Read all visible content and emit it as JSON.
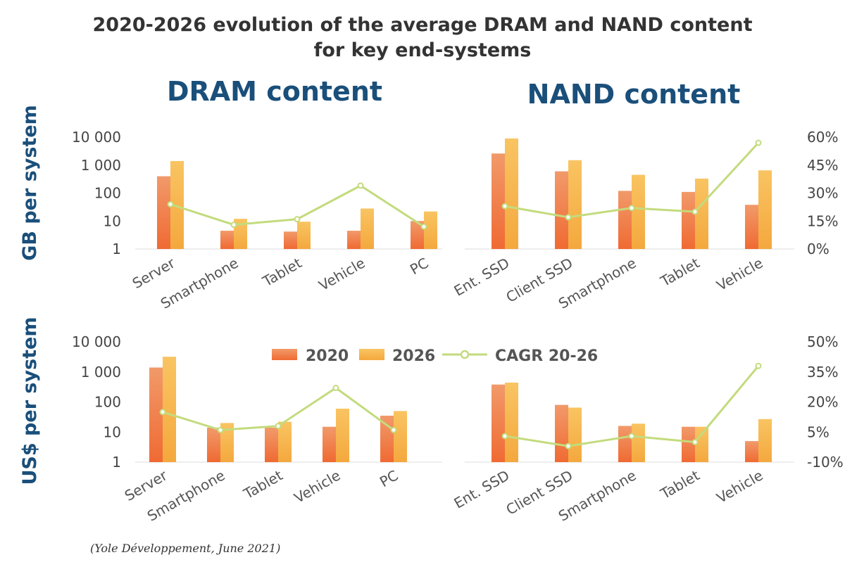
{
  "title_line1": "2020-2026 evolution of the average DRAM and NAND content",
  "title_line2": "for key end-systems",
  "section_titles": {
    "dram": "DRAM content",
    "nand": "NAND content"
  },
  "row_labels": {
    "gb": "GB per system",
    "usd": "US$ per system"
  },
  "legend": {
    "s2020": "2020",
    "s2026": "2026",
    "cagr": "CAGR 20-26"
  },
  "source": "(Yole Développement, June 2021)",
  "colors": {
    "bar2020": "#ee7a45",
    "bar2020_dark": "#f06a33",
    "bar2026": "#f7b84f",
    "bar2026_dark": "#f4a83e",
    "cagr": "#c3db7d",
    "title": "#1a4f7a"
  },
  "chart_data": [
    {
      "type": "bar",
      "name": "DRAM GB per system",
      "yscale": "log",
      "yticks": [
        "1",
        "10",
        "100",
        "1 000",
        "10 000"
      ],
      "categories": [
        "Server",
        "Smartphone",
        "Tablet",
        "Vehicle",
        "PC"
      ],
      "series": [
        {
          "name": "2020",
          "values": [
            400,
            4.5,
            4.2,
            4.5,
            10
          ]
        },
        {
          "name": "2026",
          "values": [
            1400,
            12,
            9.5,
            28,
            22
          ]
        }
      ],
      "cagr": {
        "name": "CAGR 20-26",
        "values": [
          0.24,
          0.13,
          0.16,
          0.34,
          0.12
        ],
        "ylim": [
          0,
          0.6
        ]
      }
    },
    {
      "type": "bar",
      "name": "NAND GB per system",
      "yscale": "log",
      "categories": [
        "Ent. SSD",
        "Client SSD",
        "Smartphone",
        "Tablet",
        "Vehicle"
      ],
      "y2ticks": [
        "0%",
        "15%",
        "30%",
        "45%",
        "60%"
      ],
      "series": [
        {
          "name": "2020",
          "values": [
            2600,
            600,
            120,
            110,
            38
          ]
        },
        {
          "name": "2026",
          "values": [
            9000,
            1500,
            450,
            330,
            650
          ]
        }
      ],
      "cagr": {
        "name": "CAGR 20-26",
        "values": [
          0.23,
          0.17,
          0.22,
          0.2,
          0.57
        ],
        "ylim": [
          0,
          0.6
        ]
      }
    },
    {
      "type": "bar",
      "name": "DRAM US$ per system",
      "yscale": "log",
      "yticks": [
        "1",
        "10",
        "100",
        "1 000",
        "10 000"
      ],
      "categories": [
        "Server",
        "Smartphone",
        "Tablet",
        "Vehicle",
        "PC"
      ],
      "series": [
        {
          "name": "2020",
          "values": [
            1400,
            14,
            14,
            15,
            35
          ]
        },
        {
          "name": "2026",
          "values": [
            3200,
            20,
            22,
            60,
            50
          ]
        }
      ],
      "cagr": {
        "name": "CAGR 20-26",
        "values": [
          0.15,
          0.06,
          0.08,
          0.27,
          0.06
        ],
        "ylim": [
          -0.1,
          0.5
        ]
      }
    },
    {
      "type": "bar",
      "name": "NAND US$ per system",
      "yscale": "log",
      "categories": [
        "Ent. SSD",
        "Client SSD",
        "Smartphone",
        "Tablet",
        "Vehicle"
      ],
      "y2ticks": [
        "-10%",
        "5%",
        "20%",
        "35%",
        "50%"
      ],
      "series": [
        {
          "name": "2020",
          "values": [
            380,
            80,
            16,
            15,
            5
          ]
        },
        {
          "name": "2026",
          "values": [
            440,
            65,
            19,
            15,
            27
          ]
        }
      ],
      "cagr": {
        "name": "CAGR 20-26",
        "values": [
          0.03,
          -0.02,
          0.03,
          0.0,
          0.38
        ],
        "ylim": [
          -0.1,
          0.5
        ]
      }
    }
  ]
}
